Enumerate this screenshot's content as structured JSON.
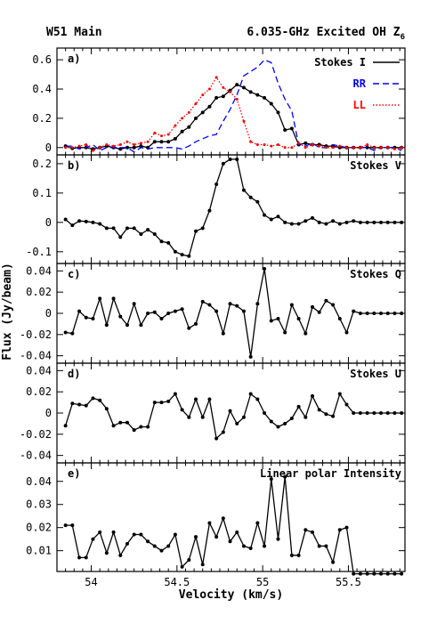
{
  "header": {
    "left": "W51 Main",
    "right": "6.035-GHz Excited OH Z",
    "right_subscript": "6"
  },
  "chart_data": [
    {
      "type": "line",
      "panel_label": "a)",
      "ylim": [
        -0.05,
        0.68
      ],
      "yticks": [
        0,
        0.2,
        0.4,
        0.6
      ],
      "ytick_labels": [
        "0",
        "0.2",
        "0.4",
        "0.6"
      ],
      "legend": [
        {
          "label": "Stokes I",
          "color": "#000000",
          "dash": "solid"
        },
        {
          "label": "RR",
          "color": "#0000ff",
          "dash": "dashed"
        },
        {
          "label": "LL",
          "color": "#ff0000",
          "dash": "dotted"
        }
      ],
      "series": [
        {
          "name": "Stokes I",
          "color": "#000000",
          "dash": "solid",
          "markers": true,
          "x": [
            53.85,
            53.89,
            53.93,
            53.97,
            54.01,
            54.05,
            54.09,
            54.13,
            54.17,
            54.21,
            54.25,
            54.29,
            54.33,
            54.37,
            54.41,
            54.45,
            54.49,
            54.53,
            54.57,
            54.61,
            54.65,
            54.69,
            54.73,
            54.77,
            54.81,
            54.85,
            54.89,
            54.93,
            54.97,
            55.01,
            55.05,
            55.09,
            55.13,
            55.17,
            55.21,
            55.25,
            55.29,
            55.33,
            55.37,
            55.41,
            55.45,
            55.49,
            55.53,
            55.57,
            55.61,
            55.65,
            55.69,
            55.73,
            55.77,
            55.81
          ],
          "y": [
            0.01,
            -0.005,
            0.0,
            0.0,
            -0.01,
            0.0,
            0.01,
            0.0,
            -0.01,
            0.0,
            0.0,
            0.01,
            0.0,
            0.04,
            0.04,
            0.04,
            0.06,
            0.11,
            0.14,
            0.2,
            0.24,
            0.28,
            0.34,
            0.35,
            0.39,
            0.43,
            0.41,
            0.38,
            0.36,
            0.34,
            0.3,
            0.24,
            0.12,
            0.13,
            0.02,
            0.03,
            0.02,
            0.02,
            0.01,
            0.01,
            0.0,
            0.0,
            0.0,
            0.0,
            0.0,
            0.0,
            0.0,
            0.0,
            0.0,
            0.0
          ]
        },
        {
          "name": "RR",
          "color": "#0000ff",
          "dash": "dashed",
          "markers": false,
          "x": [
            53.85,
            53.89,
            53.93,
            53.97,
            54.01,
            54.05,
            54.09,
            54.13,
            54.17,
            54.21,
            54.25,
            54.29,
            54.33,
            54.37,
            54.41,
            54.45,
            54.49,
            54.53,
            54.57,
            54.61,
            54.65,
            54.69,
            54.73,
            54.77,
            54.81,
            54.85,
            54.89,
            54.93,
            54.97,
            55.01,
            55.05,
            55.09,
            55.13,
            55.17,
            55.21,
            55.25,
            55.29,
            55.33,
            55.37,
            55.41,
            55.45,
            55.49,
            55.53,
            55.57,
            55.61,
            55.65,
            55.69,
            55.73,
            55.77,
            55.81
          ],
          "y": [
            0.01,
            0.01,
            -0.01,
            0.0,
            0.02,
            -0.02,
            0.0,
            0.0,
            0.0,
            0.0,
            -0.03,
            0.0,
            -0.01,
            0.0,
            0.0,
            0.0,
            0.0,
            -0.01,
            0.01,
            0.04,
            0.06,
            0.08,
            0.09,
            0.18,
            0.26,
            0.36,
            0.49,
            0.52,
            0.55,
            0.6,
            0.58,
            0.44,
            0.33,
            0.25,
            0.02,
            0.01,
            0.03,
            0.0,
            0.0,
            0.02,
            0.01,
            0.0,
            0.0,
            0.0,
            0.0,
            -0.02,
            0.0,
            0.0,
            0.0,
            -0.02
          ]
        },
        {
          "name": "LL",
          "color": "#ff0000",
          "dash": "dotted",
          "markers": true,
          "x": [
            53.85,
            53.89,
            53.93,
            53.97,
            54.01,
            54.05,
            54.09,
            54.13,
            54.17,
            54.21,
            54.25,
            54.29,
            54.33,
            54.37,
            54.41,
            54.45,
            54.49,
            54.53,
            54.57,
            54.61,
            54.65,
            54.69,
            54.73,
            54.77,
            54.81,
            54.85,
            54.89,
            54.93,
            54.97,
            55.01,
            55.05,
            55.09,
            55.13,
            55.17,
            55.21,
            55.25,
            55.29,
            55.33,
            55.37,
            55.41,
            55.45,
            55.49,
            55.53,
            55.57,
            55.61,
            55.65,
            55.69,
            55.73,
            55.77,
            55.81
          ],
          "y": [
            0.0,
            0.0,
            0.01,
            0.02,
            -0.02,
            0.0,
            0.02,
            0.01,
            0.02,
            0.04,
            0.02,
            0.03,
            0.04,
            0.1,
            0.08,
            0.09,
            0.15,
            0.2,
            0.24,
            0.3,
            0.36,
            0.4,
            0.48,
            0.41,
            0.38,
            0.33,
            0.18,
            0.04,
            0.02,
            0.02,
            0.01,
            0.02,
            0.0,
            0.0,
            0.03,
            0.0,
            0.02,
            0.01,
            0.0,
            0.0,
            0.01,
            0.0,
            0.0,
            0.0,
            0.02,
            0.0,
            0.0,
            0.0,
            -0.01,
            0.0
          ]
        }
      ]
    },
    {
      "type": "line",
      "panel_label": "b)",
      "title": "Stokes V",
      "ylim": [
        -0.14,
        0.23
      ],
      "yticks": [
        -0.1,
        0,
        0.1,
        0.2
      ],
      "ytick_labels": [
        "-0.1",
        "0",
        "0.1",
        "0.2"
      ],
      "series": [
        {
          "name": "Stokes V",
          "color": "#000000",
          "dash": "solid",
          "markers": true,
          "x": [
            53.85,
            53.89,
            53.93,
            53.97,
            54.01,
            54.05,
            54.09,
            54.13,
            54.17,
            54.21,
            54.25,
            54.29,
            54.33,
            54.37,
            54.41,
            54.45,
            54.49,
            54.53,
            54.57,
            54.61,
            54.65,
            54.69,
            54.73,
            54.77,
            54.81,
            54.85,
            54.89,
            54.93,
            54.97,
            55.01,
            55.05,
            55.09,
            55.13,
            55.17,
            55.21,
            55.25,
            55.29,
            55.33,
            55.37,
            55.41,
            55.45,
            55.49,
            55.53,
            55.57,
            55.61,
            55.65,
            55.69,
            55.73,
            55.77,
            55.81
          ],
          "y": [
            0.01,
            -0.01,
            0.005,
            0.003,
            0.0,
            -0.005,
            -0.02,
            -0.02,
            -0.05,
            -0.02,
            -0.02,
            -0.04,
            -0.025,
            -0.04,
            -0.065,
            -0.07,
            -0.1,
            -0.11,
            -0.115,
            -0.03,
            -0.02,
            0.04,
            0.13,
            0.2,
            0.215,
            0.215,
            0.11,
            0.085,
            0.07,
            0.025,
            0.01,
            0.02,
            0.0,
            -0.005,
            -0.005,
            0.005,
            0.015,
            0.0,
            -0.005,
            0.005,
            -0.005,
            0.0,
            0.005,
            0.0,
            0.0,
            0.0,
            0.0,
            0.0,
            0.0,
            0.0
          ]
        }
      ]
    },
    {
      "type": "line",
      "panel_label": "c)",
      "title": "Stokes Q",
      "ylim": [
        -0.047,
        0.047
      ],
      "yticks": [
        -0.04,
        -0.02,
        0,
        0.02,
        0.04
      ],
      "ytick_labels": [
        "-0.04",
        "-0.02",
        "0",
        "0.02",
        "0.04"
      ],
      "series": [
        {
          "name": "Stokes Q",
          "color": "#000000",
          "dash": "solid",
          "markers": true,
          "x": [
            53.85,
            53.89,
            53.93,
            53.97,
            54.01,
            54.05,
            54.09,
            54.13,
            54.17,
            54.21,
            54.25,
            54.29,
            54.33,
            54.37,
            54.41,
            54.45,
            54.49,
            54.53,
            54.57,
            54.61,
            54.65,
            54.69,
            54.73,
            54.77,
            54.81,
            54.85,
            54.89,
            54.93,
            54.97,
            55.01,
            55.05,
            55.09,
            55.13,
            55.17,
            55.21,
            55.25,
            55.29,
            55.33,
            55.37,
            55.41,
            55.45,
            55.49,
            55.53,
            55.57,
            55.61,
            55.65,
            55.69,
            55.73,
            55.77,
            55.81
          ],
          "y": [
            -0.018,
            -0.019,
            0.002,
            -0.004,
            -0.005,
            0.014,
            -0.011,
            0.014,
            -0.003,
            -0.011,
            0.009,
            -0.011,
            0.0,
            0.001,
            -0.005,
            0.0,
            0.002,
            0.004,
            -0.014,
            -0.01,
            0.011,
            0.008,
            0.002,
            -0.019,
            0.009,
            0.007,
            0.002,
            -0.041,
            0.009,
            0.042,
            -0.007,
            -0.005,
            -0.018,
            0.008,
            -0.005,
            -0.019,
            0.006,
            0.001,
            0.012,
            0.008,
            -0.005,
            -0.018,
            0.002,
            0.0,
            0.0,
            0.0,
            0.0,
            0.0,
            0.0,
            0.0
          ]
        }
      ]
    },
    {
      "type": "line",
      "panel_label": "d)",
      "title": "Stokes U",
      "ylim": [
        -0.047,
        0.047
      ],
      "yticks": [
        -0.04,
        -0.02,
        0,
        0.02,
        0.04
      ],
      "ytick_labels": [
        "-0.04",
        "-0.02",
        "0",
        "0.02",
        "0.04"
      ],
      "series": [
        {
          "name": "Stokes U",
          "color": "#000000",
          "dash": "solid",
          "markers": true,
          "x": [
            53.85,
            53.89,
            53.93,
            53.97,
            54.01,
            54.05,
            54.09,
            54.13,
            54.17,
            54.21,
            54.25,
            54.29,
            54.33,
            54.37,
            54.41,
            54.45,
            54.49,
            54.53,
            54.57,
            54.61,
            54.65,
            54.69,
            54.73,
            54.77,
            54.81,
            54.85,
            54.89,
            54.93,
            54.97,
            55.01,
            55.05,
            55.09,
            55.13,
            55.17,
            55.21,
            55.25,
            55.29,
            55.33,
            55.37,
            55.41,
            55.45,
            55.49,
            55.53,
            55.57,
            55.61,
            55.65,
            55.69,
            55.73,
            55.77,
            55.81
          ],
          "y": [
            -0.012,
            0.009,
            0.008,
            0.007,
            0.014,
            0.012,
            0.004,
            -0.012,
            -0.009,
            -0.009,
            -0.016,
            -0.013,
            -0.013,
            0.01,
            0.01,
            0.011,
            0.018,
            0.003,
            -0.004,
            0.013,
            -0.004,
            0.013,
            -0.024,
            -0.018,
            0.002,
            -0.01,
            -0.004,
            0.018,
            0.013,
            0.0,
            -0.008,
            -0.013,
            -0.01,
            -0.005,
            0.006,
            -0.004,
            0.016,
            0.003,
            -0.001,
            -0.003,
            0.018,
            0.008,
            0.0,
            0.0,
            0.0,
            0.0,
            0.0,
            0.0,
            0.0,
            0.0
          ]
        }
      ]
    },
    {
      "type": "line",
      "panel_label": "e)",
      "title": "Linear polar Intensity",
      "ylim": [
        0.001,
        0.048
      ],
      "yticks": [
        0.01,
        0.02,
        0.03,
        0.04
      ],
      "ytick_labels": [
        "0.01",
        "0.02",
        "0.03",
        "0.04"
      ],
      "xlabel": "Velocity (km/s)",
      "xlim": [
        53.8,
        55.83
      ],
      "xticks": [
        54,
        54.5,
        55,
        55.5
      ],
      "xtick_labels": [
        "54",
        "54.5",
        "55",
        "55.5"
      ],
      "series": [
        {
          "name": "Linear polar Intensity",
          "color": "#000000",
          "dash": "solid",
          "markers": true,
          "x": [
            53.85,
            53.89,
            53.93,
            53.97,
            54.01,
            54.05,
            54.09,
            54.13,
            54.17,
            54.21,
            54.25,
            54.29,
            54.33,
            54.37,
            54.41,
            54.45,
            54.49,
            54.53,
            54.57,
            54.61,
            54.65,
            54.69,
            54.73,
            54.77,
            54.81,
            54.85,
            54.89,
            54.93,
            54.97,
            55.01,
            55.05,
            55.09,
            55.13,
            55.17,
            55.21,
            55.25,
            55.29,
            55.33,
            55.37,
            55.41,
            55.45,
            55.49,
            55.53,
            55.57,
            55.61,
            55.65,
            55.69,
            55.73,
            55.77,
            55.81
          ],
          "y": [
            0.021,
            0.021,
            0.007,
            0.007,
            0.015,
            0.018,
            0.009,
            0.018,
            0.008,
            0.013,
            0.017,
            0.017,
            0.014,
            0.012,
            0.01,
            0.012,
            0.017,
            0.003,
            0.006,
            0.016,
            0.004,
            0.022,
            0.016,
            0.024,
            0.014,
            0.018,
            0.012,
            0.011,
            0.022,
            0.012,
            0.041,
            0.015,
            0.042,
            0.008,
            0.008,
            0.019,
            0.018,
            0.012,
            0.012,
            0.005,
            0.019,
            0.02,
            0.0,
            0.0,
            0.0,
            0.0,
            0.0,
            0.0,
            0.0,
            0.0
          ]
        }
      ]
    }
  ],
  "yaxis_label": "Flux (Jy/beam)"
}
